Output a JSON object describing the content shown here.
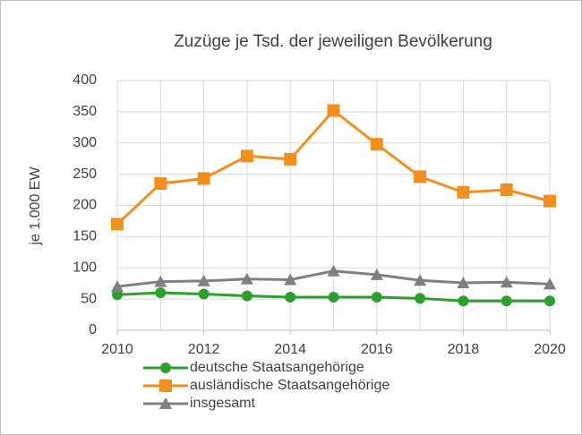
{
  "chart_data": {
    "type": "line",
    "title": "Zuzüge je Tsd. der jeweiligen Bevölkerung",
    "y_label": "je 1.000 EW",
    "x": [
      2010,
      2011,
      2012,
      2013,
      2014,
      2015,
      2016,
      2017,
      2018,
      2019,
      2020
    ],
    "xlim": [
      2010,
      2020
    ],
    "xticks": [
      2010,
      2012,
      2014,
      2016,
      2018,
      2020
    ],
    "ylim": [
      0,
      400
    ],
    "yticks": [
      0,
      50,
      100,
      150,
      200,
      250,
      300,
      350,
      400
    ],
    "grid": true,
    "series": [
      {
        "name": "deutsche Staatsangehörige",
        "color": "#2ca02c",
        "marker": "circle",
        "values": [
          57,
          60,
          58,
          55,
          53,
          53,
          53,
          51,
          47,
          47,
          47
        ]
      },
      {
        "name": "ausländische Staatsangehörige",
        "color": "#f28e1c",
        "marker": "square",
        "values": [
          170,
          235,
          243,
          279,
          274,
          352,
          298,
          246,
          221,
          225,
          207
        ]
      },
      {
        "name": "insgesamt",
        "color": "#808080",
        "marker": "triangle",
        "values": [
          70,
          78,
          79,
          82,
          81,
          95,
          89,
          80,
          76,
          77,
          74
        ]
      }
    ]
  }
}
